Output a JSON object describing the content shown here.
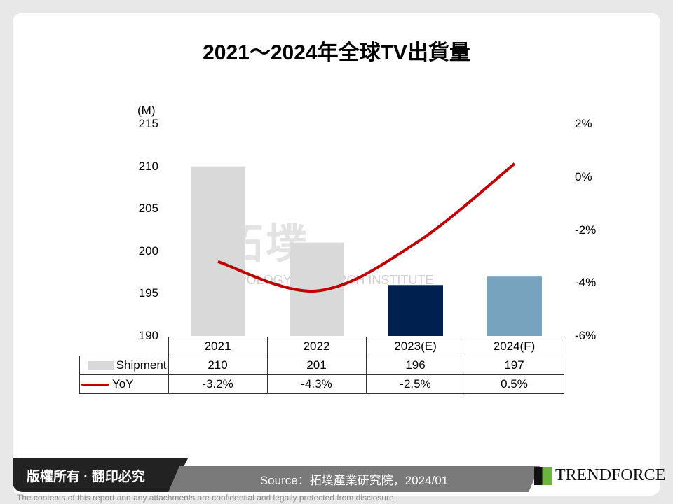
{
  "chart_data": {
    "type": "bar+line",
    "title": "2021～2024年全球TV出貨量",
    "categories": [
      "2021",
      "2022",
      "2023(E)",
      "2024(F)"
    ],
    "series": [
      {
        "name": "Shipment",
        "type": "bar",
        "axis": "left",
        "values": [
          210,
          201,
          196,
          197
        ],
        "colors": [
          "#d9d9d9",
          "#d9d9d9",
          "#002050",
          "#77a3bf"
        ]
      },
      {
        "name": "YoY",
        "type": "line",
        "axis": "right",
        "values": [
          -3.2,
          -4.3,
          -2.5,
          0.5
        ],
        "display": [
          "-3.2%",
          "-4.3%",
          "-2.5%",
          "0.5%"
        ],
        "color": "#c00000"
      }
    ],
    "left_axis": {
      "unit": "(M)",
      "ylim": [
        190,
        215
      ],
      "ticks": [
        "215",
        "210",
        "205",
        "200",
        "195",
        "190"
      ]
    },
    "right_axis": {
      "ylim": [
        -6,
        2
      ],
      "ticks": [
        "2%",
        "0%",
        "-2%",
        "-4%",
        "-6%"
      ]
    },
    "grid": false,
    "legend": "data-table"
  },
  "footer": {
    "copyright": "版權所有 · 翻印必究",
    "source": "Source：拓墣產業研究院，2024/01",
    "logo": "TRENDFORCE",
    "disclaimer": "The contents of this report and any attachments are confidential and legally protected from disclosure."
  },
  "watermark": {
    "cn": "拓墣",
    "en": "TOPOLOGY RESEARCH INSTITUTE"
  }
}
